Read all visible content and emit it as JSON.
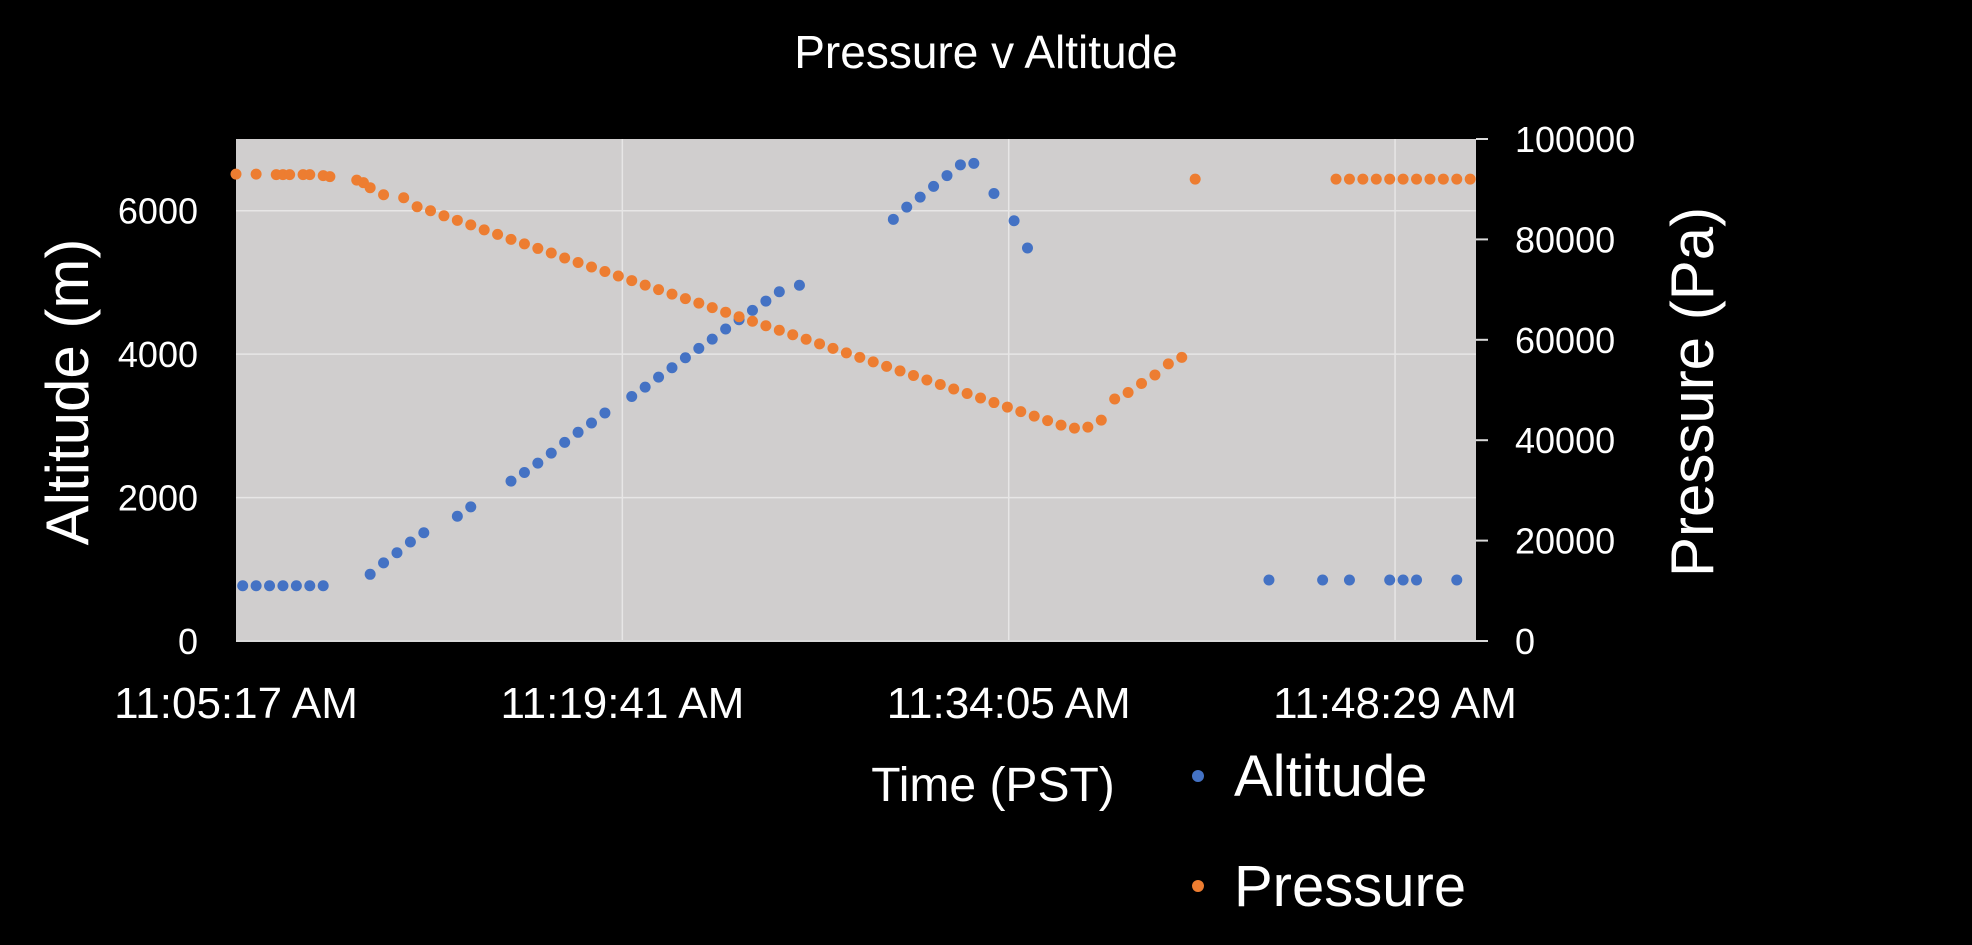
{
  "chart_data": {
    "type": "scatter",
    "title": "Pressure v Altitude",
    "xlabel": "Time (PST)",
    "ylabel": "Altitude (m)",
    "y2label": "Pressure (Pa)",
    "x_ticks": [
      "11:05:17 AM",
      "11:19:41 AM",
      "11:34:05 AM",
      "11:48:29 AM"
    ],
    "x_range": [
      "11:05:17 AM",
      "11:51:30 AM"
    ],
    "y_ticks": [
      0,
      2000,
      4000,
      6000
    ],
    "ylim": [
      0,
      7000
    ],
    "y2_ticks": [
      0,
      20000,
      40000,
      60000,
      80000,
      100000
    ],
    "y2lim": [
      0,
      100000
    ],
    "grid": true,
    "plot_background": "#d0cece",
    "legend_position": "bottom-right",
    "series": [
      {
        "name": "Altitude",
        "axis": "left",
        "color": "#4472c4",
        "points": [
          [
            "11:05:32 AM",
            770
          ],
          [
            "11:06:02 AM",
            770
          ],
          [
            "11:06:32 AM",
            770
          ],
          [
            "11:07:02 AM",
            770
          ],
          [
            "11:07:32 AM",
            770
          ],
          [
            "11:08:02 AM",
            770
          ],
          [
            "11:08:32 AM",
            770
          ],
          [
            "11:10:17 AM",
            930
          ],
          [
            "11:10:47 AM",
            1090
          ],
          [
            "11:11:17 AM",
            1230
          ],
          [
            "11:11:47 AM",
            1380
          ],
          [
            "11:12:17 AM",
            1510
          ],
          [
            "11:13:32 AM",
            1740
          ],
          [
            "11:14:02 AM",
            1870
          ],
          [
            "11:15:32 AM",
            2230
          ],
          [
            "11:16:02 AM",
            2350
          ],
          [
            "11:16:32 AM",
            2480
          ],
          [
            "11:17:02 AM",
            2620
          ],
          [
            "11:17:32 AM",
            2770
          ],
          [
            "11:18:02 AM",
            2910
          ],
          [
            "11:18:32 AM",
            3040
          ],
          [
            "11:19:02 AM",
            3180
          ],
          [
            "11:20:02 AM",
            3410
          ],
          [
            "11:20:32 AM",
            3540
          ],
          [
            "11:21:02 AM",
            3680
          ],
          [
            "11:21:32 AM",
            3810
          ],
          [
            "11:22:02 AM",
            3950
          ],
          [
            "11:22:32 AM",
            4080
          ],
          [
            "11:23:02 AM",
            4210
          ],
          [
            "11:23:32 AM",
            4350
          ],
          [
            "11:24:02 AM",
            4480
          ],
          [
            "11:24:32 AM",
            4610
          ],
          [
            "11:25:02 AM",
            4740
          ],
          [
            "11:25:32 AM",
            4870
          ],
          [
            "11:26:17 AM",
            4960
          ],
          [
            "11:29:47 AM",
            5880
          ],
          [
            "11:30:17 AM",
            6050
          ],
          [
            "11:30:47 AM",
            6190
          ],
          [
            "11:31:17 AM",
            6340
          ],
          [
            "11:31:47 AM",
            6490
          ],
          [
            "11:32:17 AM",
            6640
          ],
          [
            "11:32:47 AM",
            6660
          ],
          [
            "11:33:32 AM",
            6240
          ],
          [
            "11:34:17 AM",
            5860
          ],
          [
            "11:34:47 AM",
            5480
          ],
          [
            "11:43:47 AM",
            850
          ],
          [
            "11:45:47 AM",
            850
          ],
          [
            "11:46:47 AM",
            850
          ],
          [
            "11:48:17 AM",
            850
          ],
          [
            "11:48:47 AM",
            850
          ],
          [
            "11:49:17 AM",
            850
          ],
          [
            "11:50:47 AM",
            850
          ]
        ]
      },
      {
        "name": "Pressure",
        "axis": "right",
        "color": "#ed7d31",
        "points": [
          [
            "11:05:17 AM",
            93000
          ],
          [
            "11:06:02 AM",
            93000
          ],
          [
            "11:06:47 AM",
            92900
          ],
          [
            "11:07:02 AM",
            92900
          ],
          [
            "11:07:17 AM",
            92900
          ],
          [
            "11:07:47 AM",
            92900
          ],
          [
            "11:08:02 AM",
            92900
          ],
          [
            "11:08:32 AM",
            92700
          ],
          [
            "11:08:47 AM",
            92500
          ],
          [
            "11:09:47 AM",
            91800
          ],
          [
            "11:10:02 AM",
            91300
          ],
          [
            "11:10:17 AM",
            90300
          ],
          [
            "11:10:47 AM",
            88900
          ],
          [
            "11:11:32 AM",
            88300
          ],
          [
            "11:12:02 AM",
            86500
          ],
          [
            "11:12:32 AM",
            85700
          ],
          [
            "11:13:02 AM",
            84700
          ],
          [
            "11:13:32 AM",
            83800
          ],
          [
            "11:14:02 AM",
            82900
          ],
          [
            "11:14:32 AM",
            81900
          ],
          [
            "11:15:02 AM",
            81000
          ],
          [
            "11:15:32 AM",
            80000
          ],
          [
            "11:16:02 AM",
            79100
          ],
          [
            "11:16:32 AM",
            78200
          ],
          [
            "11:17:02 AM",
            77300
          ],
          [
            "11:17:32 AM",
            76300
          ],
          [
            "11:18:02 AM",
            75400
          ],
          [
            "11:18:32 AM",
            74500
          ],
          [
            "11:19:02 AM",
            73600
          ],
          [
            "11:19:32 AM",
            72700
          ],
          [
            "11:20:02 AM",
            71800
          ],
          [
            "11:20:32 AM",
            70900
          ],
          [
            "11:21:02 AM",
            70000
          ],
          [
            "11:21:32 AM",
            69100
          ],
          [
            "11:22:02 AM",
            68200
          ],
          [
            "11:22:32 AM",
            67300
          ],
          [
            "11:23:02 AM",
            66400
          ],
          [
            "11:23:32 AM",
            65500
          ],
          [
            "11:24:02 AM",
            64600
          ],
          [
            "11:24:32 AM",
            63700
          ],
          [
            "11:25:02 AM",
            62800
          ],
          [
            "11:25:32 AM",
            61900
          ],
          [
            "11:26:02 AM",
            61000
          ],
          [
            "11:26:32 AM",
            60100
          ],
          [
            "11:27:02 AM",
            59200
          ],
          [
            "11:27:32 AM",
            58300
          ],
          [
            "11:28:02 AM",
            57400
          ],
          [
            "11:28:32 AM",
            56500
          ],
          [
            "11:29:02 AM",
            55600
          ],
          [
            "11:29:32 AM",
            54700
          ],
          [
            "11:30:02 AM",
            53800
          ],
          [
            "11:30:32 AM",
            52900
          ],
          [
            "11:31:02 AM",
            52000
          ],
          [
            "11:31:32 AM",
            51100
          ],
          [
            "11:32:02 AM",
            50200
          ],
          [
            "11:32:32 AM",
            49300
          ],
          [
            "11:33:02 AM",
            48400
          ],
          [
            "11:33:32 AM",
            47500
          ],
          [
            "11:34:02 AM",
            46600
          ],
          [
            "11:34:32 AM",
            45700
          ],
          [
            "11:35:02 AM",
            44800
          ],
          [
            "11:35:32 AM",
            43900
          ],
          [
            "11:36:02 AM",
            43000
          ],
          [
            "11:36:32 AM",
            42400
          ],
          [
            "11:37:02 AM",
            42600
          ],
          [
            "11:37:32 AM",
            44000
          ],
          [
            "11:38:02 AM",
            48200
          ],
          [
            "11:38:32 AM",
            49500
          ],
          [
            "11:39:02 AM",
            51300
          ],
          [
            "11:39:32 AM",
            53000
          ],
          [
            "11:40:02 AM",
            55200
          ],
          [
            "11:40:32 AM",
            56500
          ],
          [
            "11:41:02 AM",
            92000
          ],
          [
            "11:46:17 AM",
            92000
          ],
          [
            "11:46:47 AM",
            92000
          ],
          [
            "11:47:17 AM",
            92000
          ],
          [
            "11:47:47 AM",
            92000
          ],
          [
            "11:48:17 AM",
            92000
          ],
          [
            "11:48:47 AM",
            92000
          ],
          [
            "11:49:17 AM",
            92000
          ],
          [
            "11:49:47 AM",
            92000
          ],
          [
            "11:50:17 AM",
            92000
          ],
          [
            "11:50:47 AM",
            92000
          ],
          [
            "11:51:17 AM",
            92000
          ]
        ]
      }
    ]
  }
}
